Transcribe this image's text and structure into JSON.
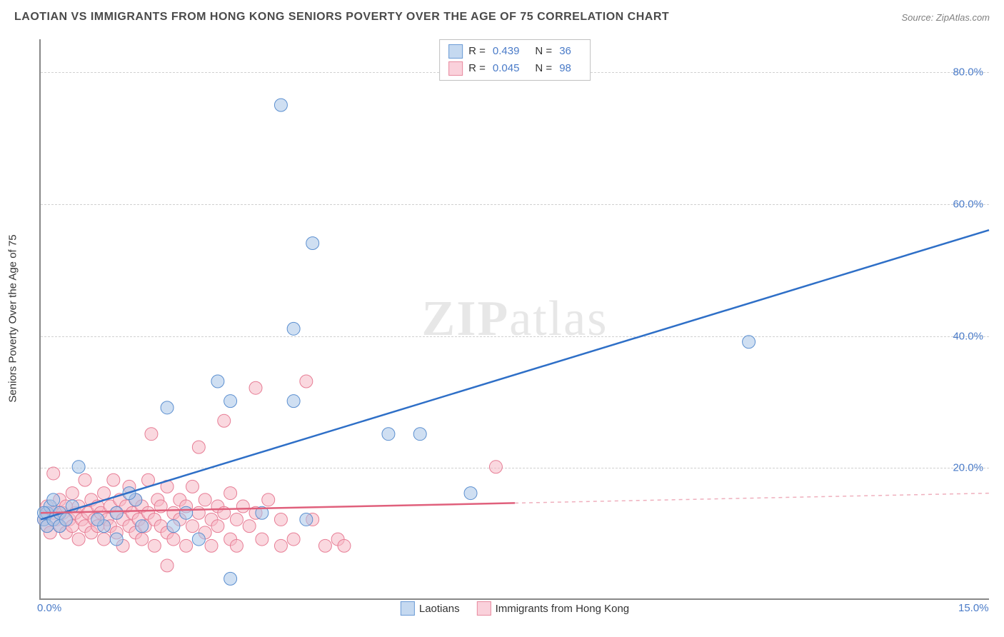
{
  "header": {
    "title": "LAOTIAN VS IMMIGRANTS FROM HONG KONG SENIORS POVERTY OVER THE AGE OF 75 CORRELATION CHART",
    "source": "Source: ZipAtlas.com"
  },
  "watermark": {
    "part1": "ZIP",
    "part2": "atlas"
  },
  "chart": {
    "type": "scatter",
    "y_axis_title": "Seniors Poverty Over the Age of 75",
    "background_color": "#ffffff",
    "grid_color": "#d0d0d0",
    "axis_color": "#888888",
    "xlim": [
      0,
      15
    ],
    "ylim": [
      0,
      85
    ],
    "xticks": [
      {
        "v": 0,
        "label": "0.0%"
      },
      {
        "v": 15,
        "label": "15.0%"
      }
    ],
    "yticks": [
      {
        "v": 20,
        "label": "20.0%"
      },
      {
        "v": 40,
        "label": "40.0%"
      },
      {
        "v": 60,
        "label": "60.0%"
      },
      {
        "v": 80,
        "label": "80.0%"
      }
    ],
    "marker_radius": 9,
    "marker_opacity": 0.55,
    "series": [
      {
        "name": "Laotians",
        "color_fill": "#a8c5e8",
        "color_stroke": "#5b8fd0",
        "swatch_fill": "#c5d9f0",
        "swatch_border": "#6b9bd6",
        "R": "0.439",
        "N": "36",
        "trend": {
          "x1": 0,
          "y1": 12,
          "x2": 15,
          "y2": 56,
          "color": "#2e6fc7",
          "width": 2.5,
          "dash_after_x": null
        },
        "points": [
          [
            0.05,
            12
          ],
          [
            0.1,
            13
          ],
          [
            0.1,
            11
          ],
          [
            0.15,
            14
          ],
          [
            0.2,
            12
          ],
          [
            0.2,
            15
          ],
          [
            0.3,
            11
          ],
          [
            0.3,
            13
          ],
          [
            0.6,
            20
          ],
          [
            1.0,
            11
          ],
          [
            1.2,
            9
          ],
          [
            1.2,
            13
          ],
          [
            1.5,
            15
          ],
          [
            1.6,
            11
          ],
          [
            2.0,
            29
          ],
          [
            2.1,
            11
          ],
          [
            2.3,
            13
          ],
          [
            2.5,
            9
          ],
          [
            2.8,
            33
          ],
          [
            3.0,
            30
          ],
          [
            3.0,
            3
          ],
          [
            3.5,
            13
          ],
          [
            3.8,
            75
          ],
          [
            4.0,
            41
          ],
          [
            4.0,
            30
          ],
          [
            4.2,
            12
          ],
          [
            4.3,
            54
          ],
          [
            5.5,
            25
          ],
          [
            6.0,
            25
          ],
          [
            6.8,
            16
          ],
          [
            11.2,
            39
          ],
          [
            0.05,
            13
          ],
          [
            0.4,
            12
          ],
          [
            0.5,
            14
          ],
          [
            0.9,
            12
          ],
          [
            1.4,
            16
          ]
        ]
      },
      {
        "name": "Immigrants from Hong Kong",
        "color_fill": "#f5b8c5",
        "color_stroke": "#e77d95",
        "swatch_fill": "#fad1db",
        "swatch_border": "#e88ba0",
        "R": "0.045",
        "N": "98",
        "trend": {
          "x1": 0,
          "y1": 13,
          "x2": 15,
          "y2": 16,
          "color": "#e0607c",
          "width": 2.5,
          "dash_after_x": 7.5
        },
        "points": [
          [
            0.05,
            12
          ],
          [
            0.1,
            13
          ],
          [
            0.1,
            11
          ],
          [
            0.1,
            14
          ],
          [
            0.15,
            10
          ],
          [
            0.2,
            13
          ],
          [
            0.2,
            19
          ],
          [
            0.25,
            12
          ],
          [
            0.3,
            11
          ],
          [
            0.3,
            15
          ],
          [
            0.35,
            13
          ],
          [
            0.4,
            10
          ],
          [
            0.4,
            14
          ],
          [
            0.45,
            12
          ],
          [
            0.5,
            11
          ],
          [
            0.5,
            16
          ],
          [
            0.55,
            13
          ],
          [
            0.6,
            9
          ],
          [
            0.6,
            14
          ],
          [
            0.65,
            12
          ],
          [
            0.7,
            18
          ],
          [
            0.7,
            11
          ],
          [
            0.75,
            13
          ],
          [
            0.8,
            10
          ],
          [
            0.8,
            15
          ],
          [
            0.85,
            12
          ],
          [
            0.9,
            14
          ],
          [
            0.9,
            11
          ],
          [
            0.95,
            13
          ],
          [
            1.0,
            9
          ],
          [
            1.0,
            16
          ],
          [
            1.05,
            12
          ],
          [
            1.1,
            14
          ],
          [
            1.1,
            11
          ],
          [
            1.15,
            18
          ],
          [
            1.2,
            13
          ],
          [
            1.2,
            10
          ],
          [
            1.25,
            15
          ],
          [
            1.3,
            12
          ],
          [
            1.3,
            8
          ],
          [
            1.35,
            14
          ],
          [
            1.4,
            11
          ],
          [
            1.4,
            17
          ],
          [
            1.45,
            13
          ],
          [
            1.5,
            10
          ],
          [
            1.5,
            15
          ],
          [
            1.55,
            12
          ],
          [
            1.6,
            9
          ],
          [
            1.6,
            14
          ],
          [
            1.65,
            11
          ],
          [
            1.7,
            18
          ],
          [
            1.7,
            13
          ],
          [
            1.75,
            25
          ],
          [
            1.8,
            12
          ],
          [
            1.8,
            8
          ],
          [
            1.85,
            15
          ],
          [
            1.9,
            11
          ],
          [
            1.9,
            14
          ],
          [
            2.0,
            10
          ],
          [
            2.0,
            17
          ],
          [
            2.1,
            13
          ],
          [
            2.1,
            9
          ],
          [
            2.2,
            15
          ],
          [
            2.2,
            12
          ],
          [
            2.3,
            8
          ],
          [
            2.3,
            14
          ],
          [
            2.4,
            11
          ],
          [
            2.4,
            17
          ],
          [
            2.5,
            13
          ],
          [
            2.5,
            23
          ],
          [
            2.6,
            10
          ],
          [
            2.6,
            15
          ],
          [
            2.7,
            12
          ],
          [
            2.7,
            8
          ],
          [
            2.8,
            14
          ],
          [
            2.8,
            11
          ],
          [
            2.9,
            27
          ],
          [
            2.9,
            13
          ],
          [
            3.0,
            9
          ],
          [
            3.0,
            16
          ],
          [
            3.1,
            12
          ],
          [
            3.1,
            8
          ],
          [
            3.2,
            14
          ],
          [
            3.3,
            11
          ],
          [
            3.4,
            32
          ],
          [
            3.4,
            13
          ],
          [
            3.5,
            9
          ],
          [
            3.6,
            15
          ],
          [
            3.8,
            8
          ],
          [
            3.8,
            12
          ],
          [
            4.0,
            9
          ],
          [
            4.2,
            33
          ],
          [
            4.3,
            12
          ],
          [
            4.5,
            8
          ],
          [
            4.7,
            9
          ],
          [
            4.8,
            8
          ],
          [
            2.0,
            5
          ],
          [
            7.2,
            20
          ]
        ]
      }
    ],
    "legend_bottom": [
      {
        "swatch_fill": "#c5d9f0",
        "swatch_border": "#6b9bd6",
        "label": "Laotians"
      },
      {
        "swatch_fill": "#fad1db",
        "swatch_border": "#e88ba0",
        "label": "Immigrants from Hong Kong"
      }
    ]
  }
}
